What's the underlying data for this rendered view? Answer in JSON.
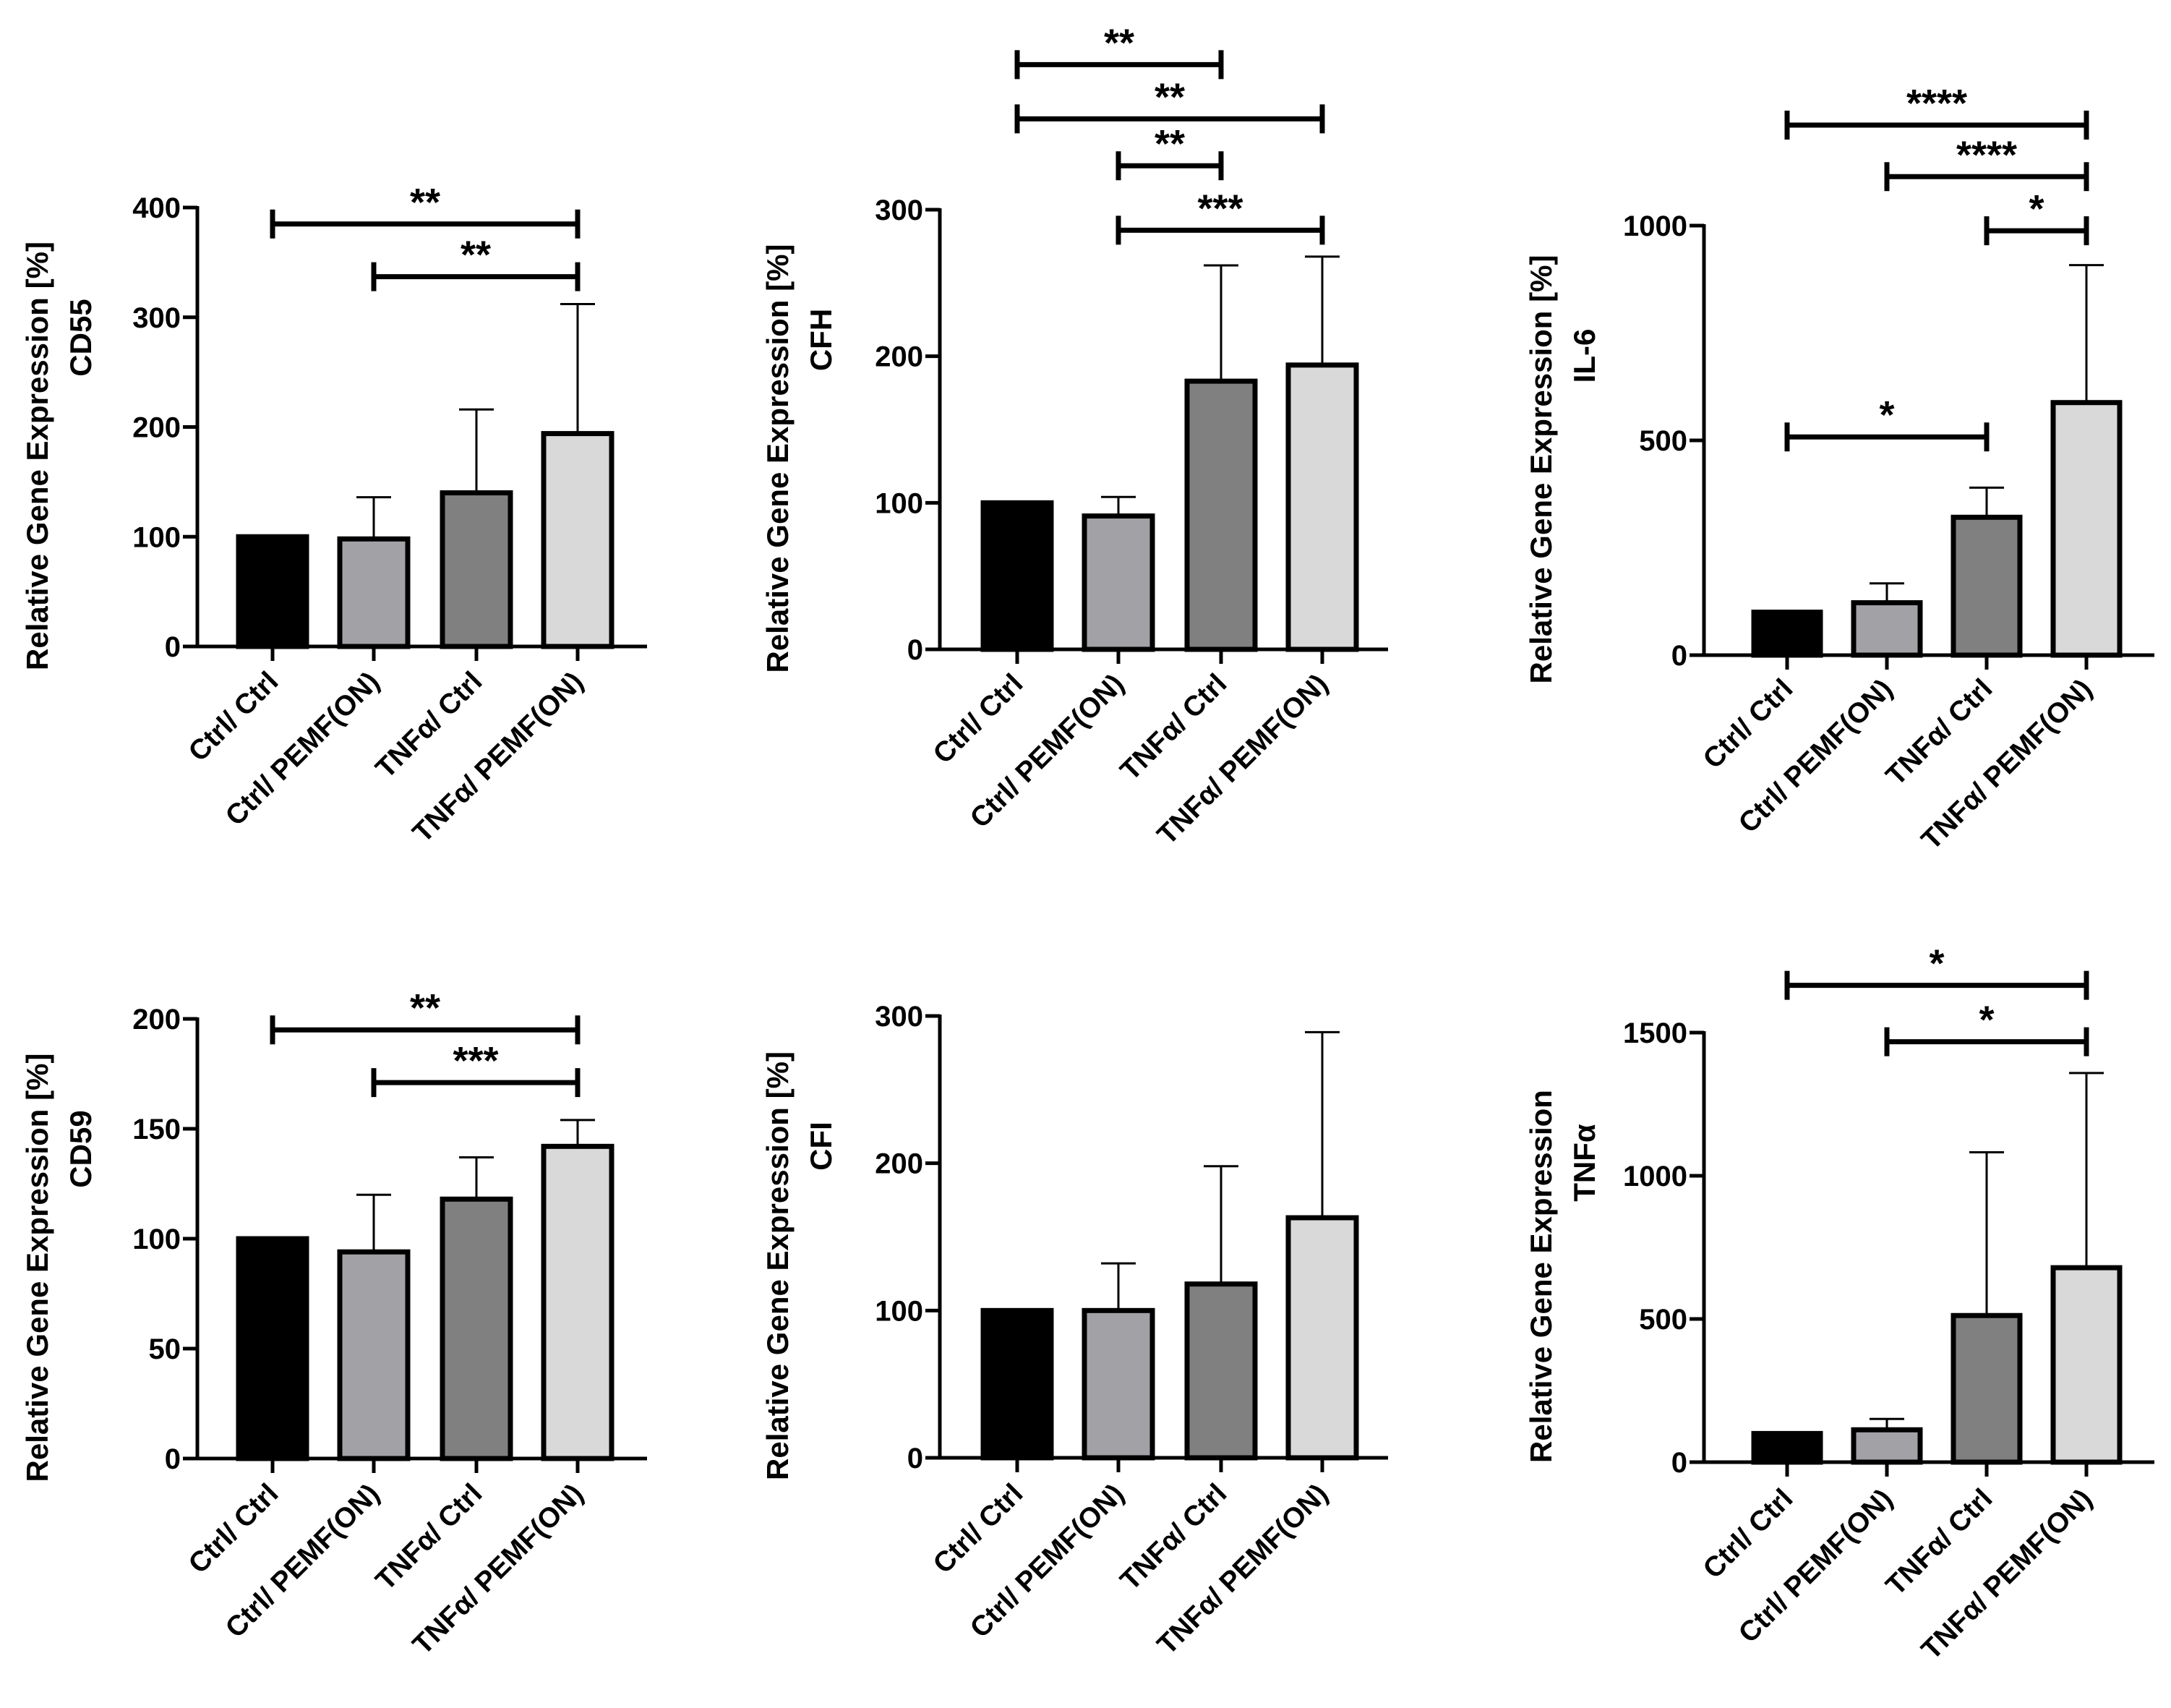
{
  "figure_title": "",
  "chart_data": [
    {
      "type": "bar",
      "title": "",
      "ylabel": "Relative Gene Expression [%]",
      "ylabel2": "CD55",
      "categories": [
        "Ctrl/ Ctrl",
        "Ctrl/ PEMF(ON)",
        "TNFα/ Ctrl",
        "TNFα/ PEMF(ON)"
      ],
      "values": [
        100,
        98,
        140,
        194
      ],
      "errors": [
        0,
        38,
        76,
        118
      ],
      "colors": [
        "#000000",
        "#a2a2a6",
        "#808080",
        "#d9d9d9"
      ],
      "ylim": [
        0,
        400
      ],
      "yticks": [
        0,
        100,
        200,
        300,
        400
      ],
      "ytick_labels": [
        "0",
        "100",
        "200",
        "300",
        "400"
      ],
      "significance": [
        {
          "from": 0,
          "to": 3,
          "label": "**",
          "y": 385
        },
        {
          "from": 1,
          "to": 3,
          "label": "**",
          "y": 337
        }
      ]
    },
    {
      "type": "bar",
      "title": "",
      "ylabel": "Relative Gene Expression [%]",
      "ylabel2": "CFH",
      "categories": [
        "Ctrl/ Ctrl",
        "Ctrl/ PEMF(ON)",
        "TNFα/ Ctrl",
        "TNFα/ PEMF(ON)"
      ],
      "values": [
        100,
        91,
        183,
        194
      ],
      "errors": [
        0,
        13,
        79,
        74
      ],
      "colors": [
        "#000000",
        "#a2a2a6",
        "#808080",
        "#d9d9d9"
      ],
      "ylim": [
        0,
        300
      ],
      "yticks": [
        0,
        100,
        200,
        300
      ],
      "ytick_labels": [
        "0",
        "100",
        "200",
        "300"
      ],
      "significance": [
        {
          "from": 0,
          "to": 2,
          "label": "**",
          "y": 399
        },
        {
          "from": 0,
          "to": 3,
          "label": "**",
          "y": 362
        },
        {
          "from": 1,
          "to": 2,
          "label": "**",
          "y": 330
        },
        {
          "from": 1,
          "to": 3,
          "label": "***",
          "y": 286
        }
      ]
    },
    {
      "type": "bar",
      "title": "",
      "ylabel": "Relative Gene Expression [%]",
      "ylabel2": "IL-6",
      "categories": [
        "Ctrl/ Ctrl",
        "Ctrl/ PEMF(ON)",
        "TNFα/ Ctrl",
        "TNFα/ PEMF(ON)"
      ],
      "values": [
        100,
        122,
        321,
        588
      ],
      "errors": [
        0,
        45,
        69,
        320
      ],
      "colors": [
        "#000000",
        "#a2a2a6",
        "#808080",
        "#d9d9d9"
      ],
      "ylim": [
        0,
        1000
      ],
      "yticks": [
        0,
        500,
        1000
      ],
      "ytick_labels": [
        "0",
        "500",
        "1000"
      ],
      "significance": [
        {
          "from": 0,
          "to": 3,
          "label": "****",
          "y": 1234
        },
        {
          "from": 1,
          "to": 3,
          "label": "****",
          "y": 1114
        },
        {
          "from": 2,
          "to": 3,
          "label": "*",
          "y": 988
        },
        {
          "from": 0,
          "to": 2,
          "label": "*",
          "y": 508
        }
      ]
    },
    {
      "type": "bar",
      "title": "",
      "ylabel": "Relative Gene Expression [%]",
      "ylabel2": "CD59",
      "categories": [
        "Ctrl/ Ctrl",
        "Ctrl/ PEMF(ON)",
        "TNFα/ Ctrl",
        "TNFα/ PEMF(ON)"
      ],
      "values": [
        100,
        94,
        118,
        142
      ],
      "errors": [
        0,
        26,
        19,
        12
      ],
      "colors": [
        "#000000",
        "#a2a2a6",
        "#808080",
        "#d9d9d9"
      ],
      "ylim": [
        0,
        200
      ],
      "yticks": [
        0,
        50,
        100,
        150,
        200
      ],
      "ytick_labels": [
        "0",
        "50",
        "100",
        "150",
        "200"
      ],
      "significance": [
        {
          "from": 0,
          "to": 3,
          "label": "**",
          "y": 195
        },
        {
          "from": 1,
          "to": 3,
          "label": "***",
          "y": 171
        }
      ]
    },
    {
      "type": "bar",
      "title": "",
      "ylabel": "Relative Gene Expression [%]",
      "ylabel2": "CFI",
      "categories": [
        "Ctrl/ Ctrl",
        "Ctrl/ PEMF(ON)",
        "TNFα/ Ctrl",
        "TNFα/ PEMF(ON)"
      ],
      "values": [
        100,
        100,
        118,
        163
      ],
      "errors": [
        0,
        32,
        80,
        126
      ],
      "colors": [
        "#000000",
        "#a2a2a6",
        "#808080",
        "#d9d9d9"
      ],
      "ylim": [
        0,
        300
      ],
      "yticks": [
        0,
        100,
        200,
        300
      ],
      "ytick_labels": [
        "0",
        "100",
        "200",
        "300"
      ],
      "significance": []
    },
    {
      "type": "bar",
      "title": "",
      "ylabel": "Relative Gene Expression",
      "ylabel2": "TNFα",
      "categories": [
        "Ctrl/ Ctrl",
        "Ctrl/ PEMF(ON)",
        "TNFα/ Ctrl",
        "TNFα/ PEMF(ON)"
      ],
      "values": [
        100,
        113,
        512,
        679
      ],
      "errors": [
        0,
        38,
        570,
        680
      ],
      "colors": [
        "#000000",
        "#a2a2a6",
        "#808080",
        "#d9d9d9"
      ],
      "ylim": [
        0,
        1500
      ],
      "yticks": [
        0,
        500,
        1000,
        1500
      ],
      "ytick_labels": [
        "0",
        "500",
        "1000",
        "1500"
      ],
      "significance": [
        {
          "from": 0,
          "to": 3,
          "label": "*",
          "y": 1665
        },
        {
          "from": 1,
          "to": 3,
          "label": "*",
          "y": 1468
        }
      ]
    }
  ]
}
